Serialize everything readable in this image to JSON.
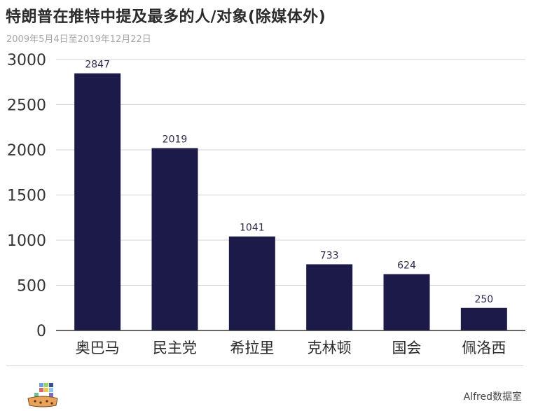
{
  "header": {
    "title": "特朗普在推特中提及最多的人/对象(除媒体外)",
    "subtitle": "2009年5月4日至2019年12月22日"
  },
  "footer": {
    "credit": "Alfred数据室"
  },
  "colors": {
    "bar": "#1b1a49",
    "grid": "#d3d3d3",
    "axis": "#333333"
  },
  "chart_data": {
    "type": "bar",
    "categories": [
      "奥巴马",
      "民主党",
      "希拉里",
      "克林顿",
      "国会",
      "佩洛西"
    ],
    "values": [
      2847,
      2019,
      1041,
      733,
      624,
      250
    ],
    "title": "特朗普在推特中提及最多的人/对象(除媒体外)",
    "subtitle": "2009年5月4日至2019年12月22日",
    "xlabel": "",
    "ylabel": "",
    "ylim": [
      0,
      3000
    ],
    "yticks": [
      0,
      500,
      1000,
      1500,
      2000,
      2500,
      3000
    ],
    "grid": true,
    "legend": "none",
    "data_labels": true
  }
}
